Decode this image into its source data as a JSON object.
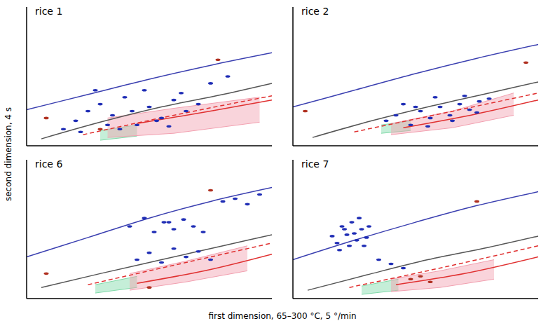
{
  "xlabel": "first dimension, 65–300 °C, 5 °/min",
  "ylabel": "second dimension, 4 s",
  "chart_data": [
    {
      "type": "scatter",
      "title": "rice 1",
      "xlim": [
        0,
        100
      ],
      "ylim": [
        0,
        100
      ],
      "tick_labels": false,
      "lines": [
        {
          "color": "#3a3fb0",
          "line_style": "solid",
          "x": [
            0,
            25,
            50,
            75,
            100
          ],
          "y": [
            26,
            37,
            48,
            58,
            67
          ]
        },
        {
          "color": "#555555",
          "line_style": "solid",
          "x": [
            6,
            30,
            55,
            80,
            100
          ],
          "y": [
            5,
            17,
            28,
            37,
            45
          ]
        },
        {
          "color": "#e03030",
          "line_style": "dashed",
          "x": [
            23,
            60,
            100
          ],
          "y": [
            8,
            22,
            36
          ]
        },
        {
          "color": "#e03030",
          "line_style": "solid",
          "x": [
            45,
            75,
            100
          ],
          "y": [
            16,
            25,
            33
          ]
        }
      ],
      "regions": [
        {
          "color": "#7fd9a8",
          "x": [
            30,
            45
          ],
          "low": [
            4,
            7
          ],
          "high": [
            11,
            15
          ]
        },
        {
          "color": "#f2a0b0",
          "x": [
            33,
            60,
            95
          ],
          "low": [
            6,
            9,
            17
          ],
          "high": [
            20,
            27,
            35
          ]
        }
      ],
      "points": [
        {
          "color": "#1f2db5",
          "x": [
            15,
            20,
            25,
            30,
            35,
            40,
            45,
            50,
            55,
            60,
            65,
            70,
            22,
            28,
            38,
            48,
            58,
            33,
            43,
            53,
            63,
            75,
            82
          ],
          "y": [
            12,
            18,
            25,
            30,
            22,
            35,
            15,
            28,
            20,
            33,
            25,
            30,
            10,
            40,
            12,
            40,
            14,
            15,
            25,
            18,
            38,
            45,
            50
          ]
        },
        {
          "color": "#b03020",
          "x": [
            78,
            30,
            8
          ],
          "y": [
            62,
            12,
            20
          ]
        }
      ]
    },
    {
      "type": "scatter",
      "title": "rice 2",
      "xlim": [
        0,
        100
      ],
      "ylim": [
        0,
        100
      ],
      "tick_labels": false,
      "lines": [
        {
          "color": "#3a3fb0",
          "line_style": "solid",
          "x": [
            0,
            25,
            50,
            75,
            100
          ],
          "y": [
            28,
            40,
            52,
            63,
            73
          ]
        },
        {
          "color": "#555555",
          "line_style": "solid",
          "x": [
            8,
            30,
            55,
            80,
            100
          ],
          "y": [
            6,
            17,
            28,
            38,
            46
          ]
        },
        {
          "color": "#e03030",
          "line_style": "dashed",
          "x": [
            25,
            60,
            100
          ],
          "y": [
            10,
            23,
            38
          ]
        },
        {
          "color": "#e03030",
          "line_style": "solid",
          "x": [
            45,
            75,
            100
          ],
          "y": [
            13,
            23,
            33
          ]
        }
      ],
      "regions": [
        {
          "color": "#7fd9a8",
          "x": [
            36,
            48
          ],
          "low": [
            9,
            11
          ],
          "high": [
            15,
            18
          ]
        },
        {
          "color": "#f2a0b0",
          "x": [
            40,
            65,
            90
          ],
          "low": [
            8,
            13,
            22
          ],
          "high": [
            16,
            25,
            38
          ]
        }
      ],
      "points": [
        {
          "color": "#1f2db5",
          "x": [
            38,
            42,
            48,
            52,
            56,
            60,
            64,
            68,
            72,
            76,
            80,
            45,
            55,
            65,
            75,
            58,
            50,
            70
          ],
          "y": [
            18,
            22,
            15,
            25,
            20,
            28,
            22,
            30,
            26,
            32,
            34,
            30,
            14,
            18,
            24,
            35,
            28,
            36
          ]
        },
        {
          "color": "#b03020",
          "x": [
            5,
            95
          ],
          "y": [
            25,
            60
          ]
        }
      ]
    },
    {
      "type": "scatter",
      "title": "rice 6",
      "xlim": [
        0,
        100
      ],
      "ylim": [
        0,
        100
      ],
      "tick_labels": false,
      "lines": [
        {
          "color": "#3a3fb0",
          "line_style": "solid",
          "x": [
            0,
            25,
            50,
            75,
            100
          ],
          "y": [
            30,
            44,
            58,
            70,
            80
          ]
        },
        {
          "color": "#555555",
          "line_style": "solid",
          "x": [
            6,
            30,
            55,
            80,
            100
          ],
          "y": [
            8,
            18,
            28,
            38,
            46
          ]
        },
        {
          "color": "#e03030",
          "line_style": "dashed",
          "x": [
            25,
            60,
            100
          ],
          "y": [
            10,
            24,
            40
          ]
        },
        {
          "color": "#e03030",
          "line_style": "solid",
          "x": [
            45,
            75,
            100
          ],
          "y": [
            11,
            21,
            32
          ]
        }
      ],
      "regions": [
        {
          "color": "#7fd9a8",
          "x": [
            28,
            45
          ],
          "low": [
            4,
            8
          ],
          "high": [
            10,
            16
          ]
        },
        {
          "color": "#f2a0b0",
          "x": [
            42,
            65,
            90
          ],
          "low": [
            6,
            12,
            20
          ],
          "high": [
            18,
            27,
            38
          ]
        }
      ],
      "points": [
        {
          "color": "#1f2db5",
          "x": [
            42,
            48,
            52,
            56,
            60,
            64,
            68,
            72,
            45,
            50,
            55,
            60,
            65,
            70,
            75,
            58,
            80,
            85,
            90,
            95
          ],
          "y": [
            52,
            58,
            48,
            55,
            50,
            57,
            52,
            48,
            28,
            33,
            26,
            36,
            30,
            34,
            28,
            55,
            70,
            72,
            68,
            75
          ]
        },
        {
          "color": "#b03020",
          "x": [
            75,
            50,
            8
          ],
          "y": [
            78,
            8,
            18
          ]
        }
      ]
    },
    {
      "type": "scatter",
      "title": "rice 7",
      "xlim": [
        0,
        100
      ],
      "ylim": [
        0,
        100
      ],
      "tick_labels": false,
      "lines": [
        {
          "color": "#3a3fb0",
          "line_style": "solid",
          "x": [
            0,
            25,
            50,
            75,
            100
          ],
          "y": [
            28,
            42,
            55,
            67,
            77
          ]
        },
        {
          "color": "#555555",
          "line_style": "solid",
          "x": [
            6,
            30,
            55,
            80,
            100
          ],
          "y": [
            6,
            17,
            28,
            37,
            45
          ]
        },
        {
          "color": "#e03030",
          "line_style": "dashed",
          "x": [
            23,
            60,
            100
          ],
          "y": [
            8,
            22,
            38
          ]
        },
        {
          "color": "#e03030",
          "line_style": "solid",
          "x": [
            42,
            70,
            100
          ],
          "y": [
            10,
            18,
            30
          ]
        }
      ],
      "regions": [
        {
          "color": "#7fd9a8",
          "x": [
            28,
            43
          ],
          "low": [
            3,
            6
          ],
          "high": [
            9,
            14
          ]
        },
        {
          "color": "#f2a0b0",
          "x": [
            40,
            60,
            82
          ],
          "low": [
            5,
            8,
            14
          ],
          "high": [
            14,
            20,
            28
          ]
        }
      ],
      "points": [
        {
          "color": "#1f2db5",
          "x": [
            16,
            18,
            20,
            22,
            24,
            26,
            28,
            30,
            19,
            23,
            27,
            21,
            25,
            29,
            31,
            35,
            40,
            45
          ],
          "y": [
            45,
            40,
            52,
            46,
            55,
            42,
            50,
            44,
            35,
            38,
            58,
            50,
            47,
            38,
            52,
            28,
            25,
            22
          ]
        },
        {
          "color": "#b03020",
          "x": [
            48,
            52,
            56,
            75
          ],
          "y": [
            14,
            16,
            12,
            70
          ]
        }
      ]
    }
  ]
}
